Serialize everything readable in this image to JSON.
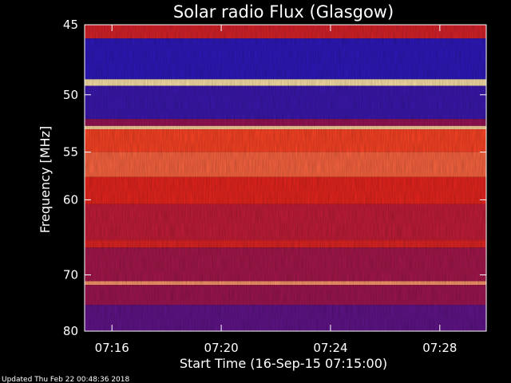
{
  "chart_data": {
    "type": "heatmap",
    "title": "Solar radio Flux (Glasgow)",
    "xlabel": "Start Time (16-Sep-15 07:15:00)",
    "ylabel": "Frequency [MHz]",
    "x_tick_labels": [
      "07:16",
      "07:20",
      "07:24",
      "07:28"
    ],
    "x_tick_minutes": [
      1,
      5,
      9,
      13
    ],
    "x_range_minutes": [
      0,
      14.7
    ],
    "y_ticks": [
      45,
      50,
      55,
      60,
      70,
      80
    ],
    "y_tick_labels": [
      "45",
      "50",
      "55",
      "60",
      "70",
      "80"
    ],
    "ylim": [
      45,
      80
    ],
    "y_scale": "reciprocal",
    "footer_text": "Updated Thu Feb 22 00:48:36 2018",
    "colors": {
      "background": "#000000",
      "frame": "#ffffff",
      "low": "#1b1bd0",
      "mid": "#8a1060",
      "high": "#ff2a10",
      "peak": "#ffffc0"
    },
    "bands": [
      {
        "freq": [
          45.0,
          45.9
        ],
        "level": 0.62
      },
      {
        "freq": [
          45.9,
          48.8
        ],
        "level": 0.06
      },
      {
        "freq": [
          48.8,
          49.3
        ],
        "level": 0.97
      },
      {
        "freq": [
          49.3,
          52.0
        ],
        "level": 0.1
      },
      {
        "freq": [
          52.0,
          52.6
        ],
        "level": 0.4
      },
      {
        "freq": [
          52.6,
          52.9
        ],
        "level": 0.95
      },
      {
        "freq": [
          52.9,
          55.0
        ],
        "level": 0.78
      },
      {
        "freq": [
          55.0,
          57.5
        ],
        "level": 0.82
      },
      {
        "freq": [
          57.5,
          60.5
        ],
        "level": 0.68
      },
      {
        "freq": [
          60.5,
          65.0
        ],
        "level": 0.55
      },
      {
        "freq": [
          65.0,
          66.0
        ],
        "level": 0.65
      },
      {
        "freq": [
          66.0,
          71.0
        ],
        "level": 0.45
      },
      {
        "freq": [
          71.0,
          71.6
        ],
        "level": 0.88
      },
      {
        "freq": [
          71.6,
          75.0
        ],
        "level": 0.42
      },
      {
        "freq": [
          75.0,
          80.0
        ],
        "level": 0.22
      }
    ]
  }
}
